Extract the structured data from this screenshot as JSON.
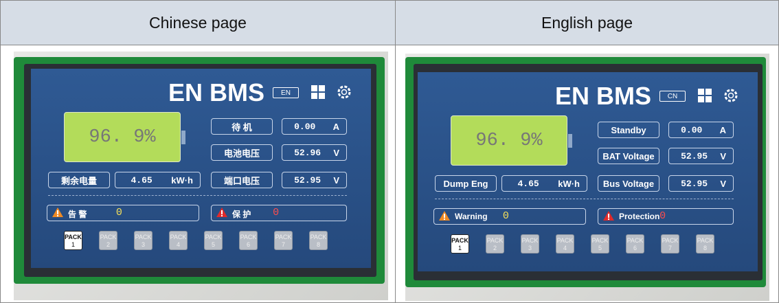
{
  "table": {
    "headers": [
      "Chinese page",
      "English page"
    ]
  },
  "screens": [
    {
      "title": "EN BMS",
      "lang_button": "EN",
      "soc": "96. 9%",
      "status_label": "待 机",
      "current": "0.00",
      "current_unit": "A",
      "bat_label": "电池电压",
      "bat_voltage": "52.96",
      "bat_unit": "V",
      "energy_label": "剩余电量",
      "energy": "4.65",
      "energy_unit": "kW·h",
      "port_label": "端口电压",
      "port_voltage": "52.95",
      "port_unit": "V",
      "warning_label": "告 警",
      "warning_count": "0",
      "protection_label": "保 护",
      "protection_count": "0",
      "packs": [
        {
          "label": "PACK",
          "num": "1"
        },
        {
          "label": "PACK",
          "num": "2"
        },
        {
          "label": "PACK",
          "num": "3"
        },
        {
          "label": "PACK",
          "num": "4"
        },
        {
          "label": "PACK",
          "num": "5"
        },
        {
          "label": "PACK",
          "num": "6"
        },
        {
          "label": "PACK",
          "num": "7"
        },
        {
          "label": "PACK",
          "num": "8"
        }
      ]
    },
    {
      "title": "EN BMS",
      "lang_button": "CN",
      "soc": "96. 9%",
      "status_label": "Standby",
      "current": "0.00",
      "current_unit": "A",
      "bat_label": "BAT Voltage",
      "bat_voltage": "52.95",
      "bat_unit": "V",
      "energy_label": "Dump Eng",
      "energy": "4.65",
      "energy_unit": "kW·h",
      "port_label": "Bus Voltage",
      "port_voltage": "52.95",
      "port_unit": "V",
      "warning_label": "Warning",
      "warning_count": "0",
      "protection_label": "Protection",
      "protection_count": "0",
      "packs": [
        {
          "label": "PACK",
          "num": "1"
        },
        {
          "label": "PACK",
          "num": "2"
        },
        {
          "label": "PACK",
          "num": "3"
        },
        {
          "label": "PACK",
          "num": "4"
        },
        {
          "label": "PACK",
          "num": "5"
        },
        {
          "label": "PACK",
          "num": "6"
        },
        {
          "label": "PACK",
          "num": "7"
        },
        {
          "label": "PACK",
          "num": "8"
        }
      ]
    }
  ]
}
